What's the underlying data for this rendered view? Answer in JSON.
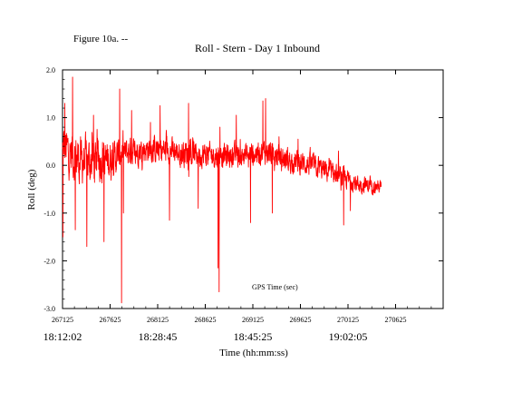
{
  "figure_label": "Figure 10a. --",
  "chart_data": {
    "type": "line",
    "title": "Roll - Stern - Day 1 Inbound",
    "xlabel": "Time (hh:mm:ss)",
    "ylabel": "Roll (deg)",
    "annotation": "GPS Time (sec)",
    "xlim": [
      267125,
      271125
    ],
    "ylim": [
      -3.0,
      2.0
    ],
    "x_ticks": [
      267125,
      267625,
      268125,
      268625,
      269125,
      269625,
      270125,
      270625
    ],
    "x_tick_labels": [
      "267125",
      "267625",
      "268125",
      "268625",
      "269125",
      "269625",
      "270125",
      "270625"
    ],
    "y_ticks": [
      -3.0,
      -2.0,
      -1.0,
      0.0,
      1.0,
      2.0
    ],
    "y_tick_labels": [
      "-3.0",
      "-2.0",
      "-1.0",
      "0.0",
      "1.0",
      "2.0"
    ],
    "time_labels": [
      {
        "x": 267125,
        "label": "18:12:02"
      },
      {
        "x": 268125,
        "label": "18:28:45"
      },
      {
        "x": 269125,
        "label": "18:45:25"
      },
      {
        "x": 270125,
        "label": "19:02:05"
      }
    ],
    "grid": false,
    "series": [
      {
        "color": "#ff0000",
        "x_start": 267125,
        "x_end": 270475,
        "approx_sample_interval_sec": 2.2,
        "envelope": [
          {
            "x": 267125,
            "mean": 0.4,
            "amp": 0.95
          },
          {
            "x": 267300,
            "mean": 0.1,
            "amp": 1.0
          },
          {
            "x": 267500,
            "mean": 0.1,
            "amp": 0.9
          },
          {
            "x": 267625,
            "mean": 0.1,
            "amp": 0.8
          },
          {
            "x": 267750,
            "mean": 0.25,
            "amp": 0.6
          },
          {
            "x": 268000,
            "mean": 0.35,
            "amp": 0.55
          },
          {
            "x": 268250,
            "mean": 0.3,
            "amp": 0.55
          },
          {
            "x": 268500,
            "mean": 0.25,
            "amp": 0.55
          },
          {
            "x": 268750,
            "mean": 0.2,
            "amp": 0.5
          },
          {
            "x": 269000,
            "mean": 0.2,
            "amp": 0.5
          },
          {
            "x": 269250,
            "mean": 0.3,
            "amp": 0.5
          },
          {
            "x": 269500,
            "mean": 0.1,
            "amp": 0.5
          },
          {
            "x": 269750,
            "mean": 0.0,
            "amp": 0.45
          },
          {
            "x": 270000,
            "mean": -0.2,
            "amp": 0.45
          },
          {
            "x": 270250,
            "mean": -0.4,
            "amp": 0.35
          },
          {
            "x": 270475,
            "mean": -0.45,
            "amp": 0.25
          }
        ],
        "peaks": [
          {
            "x": 267130,
            "y": -1.5
          },
          {
            "x": 267150,
            "y": 1.3
          },
          {
            "x": 267230,
            "y": 1.85
          },
          {
            "x": 267260,
            "y": -1.35
          },
          {
            "x": 267380,
            "y": -1.7
          },
          {
            "x": 267450,
            "y": 1.05
          },
          {
            "x": 267560,
            "y": -1.6
          },
          {
            "x": 267725,
            "y": 1.6
          },
          {
            "x": 267745,
            "y": -2.88
          },
          {
            "x": 267765,
            "y": -1.0
          },
          {
            "x": 267850,
            "y": 1.15
          },
          {
            "x": 268050,
            "y": 0.9
          },
          {
            "x": 268150,
            "y": 1.25
          },
          {
            "x": 268250,
            "y": -1.15
          },
          {
            "x": 268450,
            "y": 1.3
          },
          {
            "x": 268550,
            "y": -0.9
          },
          {
            "x": 268760,
            "y": -2.15
          },
          {
            "x": 268770,
            "y": -2.65
          },
          {
            "x": 268780,
            "y": 0.8
          },
          {
            "x": 268950,
            "y": 1.05
          },
          {
            "x": 269100,
            "y": -1.2
          },
          {
            "x": 269230,
            "y": 1.35
          },
          {
            "x": 269260,
            "y": 1.4
          },
          {
            "x": 269330,
            "y": -1.0
          },
          {
            "x": 269400,
            "y": 0.6
          },
          {
            "x": 269600,
            "y": 0.55
          },
          {
            "x": 270025,
            "y": 0.3
          },
          {
            "x": 270080,
            "y": -1.25
          },
          {
            "x": 270150,
            "y": -0.95
          }
        ]
      }
    ]
  }
}
